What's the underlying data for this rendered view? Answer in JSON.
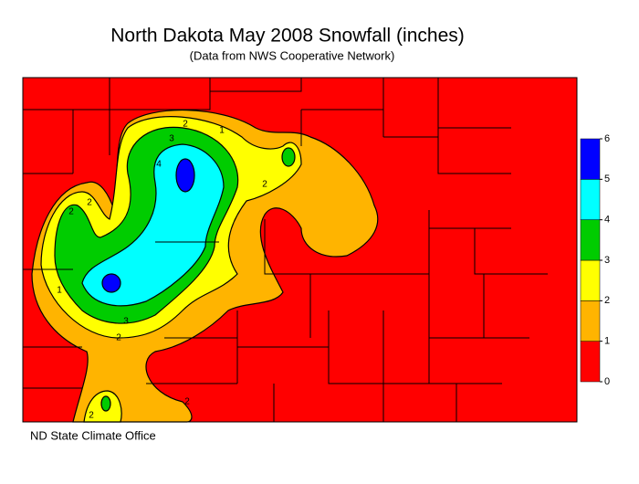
{
  "title": "North Dakota May 2008 Snowfall (inches)",
  "subtitle": "(Data from NWS Cooperative Network)",
  "legend": {
    "ticks": [
      0,
      1,
      2,
      3,
      4,
      5,
      6
    ],
    "colors": [
      "#ff0000",
      "#ffb400",
      "#ffff00",
      "#00cc00",
      "#00ffff",
      "#0000ff"
    ]
  },
  "contour_labels": [
    2,
    3,
    4,
    2,
    2,
    3,
    2,
    1,
    2,
    2,
    2,
    1
  ],
  "credit": "ND State Climate Office"
}
